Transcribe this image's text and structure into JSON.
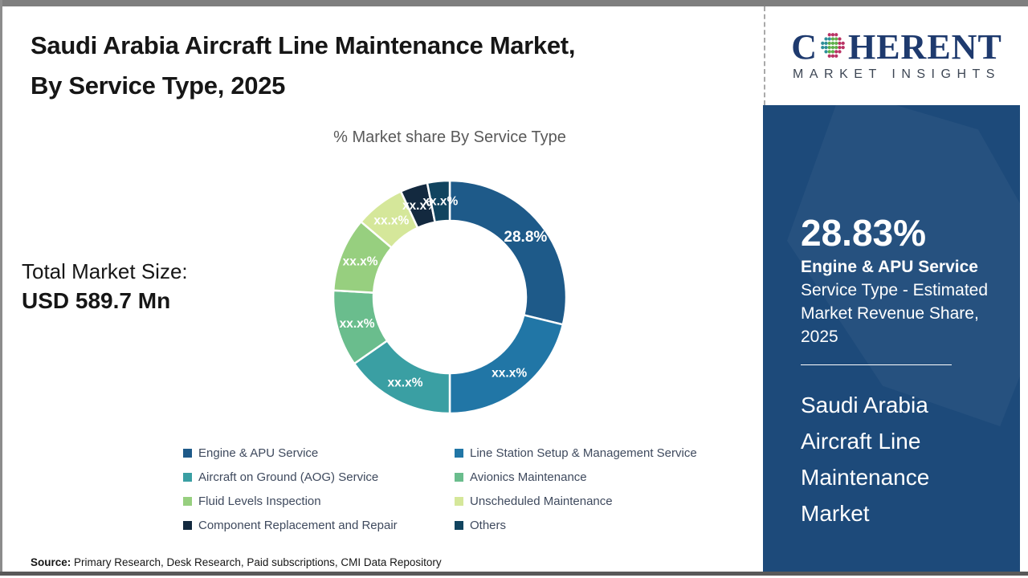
{
  "header": {
    "title_line1": "Saudi Arabia Aircraft Line Maintenance Market,",
    "title_line2": "By Service Type, 2025"
  },
  "chart_data": {
    "type": "pie",
    "subtype": "donut",
    "title": "% Market share By Service Type",
    "inner_radius_ratio": 0.655,
    "legend_position": "bottom",
    "segments": [
      {
        "label": "Engine & APU Service",
        "value": 28.8,
        "display": "28.8%",
        "color": "#1e5a89"
      },
      {
        "label": "Line Station Setup & Management Service",
        "value": 21.2,
        "display": "xx.x%",
        "color": "#2176a6"
      },
      {
        "label": "Aircraft on Ground (AOG) Service",
        "value": 15.3,
        "display": "xx.x%",
        "color": "#3a9fa3"
      },
      {
        "label": "Avionics Maintenance",
        "value": 10.6,
        "display": "xx.x%",
        "color": "#6abd8d"
      },
      {
        "label": "Fluid Levels Inspection",
        "value": 10.3,
        "display": "xx.x%",
        "color": "#97cf7f"
      },
      {
        "label": "Unscheduled Maintenance",
        "value": 6.9,
        "display": "xx.x%",
        "color": "#d5e79a"
      },
      {
        "label": "Component Replacement and Repair",
        "value": 3.8,
        "display": "xx.x%",
        "color": "#13293f"
      },
      {
        "label": "Others",
        "value": 3.1,
        "display": "xx.x%",
        "color": "#11445f"
      }
    ]
  },
  "market_size": {
    "label": "Total Market Size:",
    "value": "USD 589.7 Mn"
  },
  "source": {
    "label": "Source:",
    "text": " Primary Research, Desk Research, Paid subscriptions, CMI Data Repository"
  },
  "sidebar": {
    "logo": {
      "word_start": "C",
      "word_end": "HERENT",
      "tagline": "MARKET INSIGHTS"
    },
    "highlight": {
      "pct": "28.83%",
      "segment": "Engine & APU Service",
      "desc": "Service Type - Estimated Market Revenue Share, 2025",
      "market": "Saudi Arabia Aircraft Line Maintenance Market"
    },
    "colors": {
      "panel": "#1d4a7a",
      "logo_navy": "#1e3a6e"
    }
  }
}
